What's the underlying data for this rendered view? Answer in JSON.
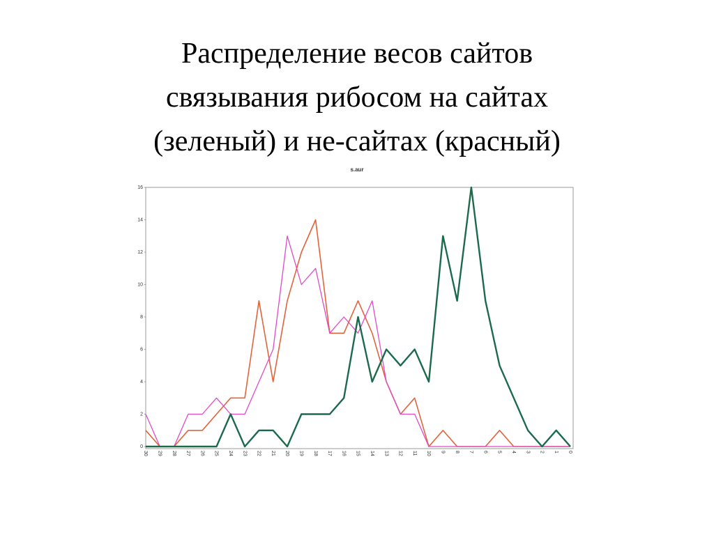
{
  "chart_data": {
    "type": "line",
    "title": [
      "Распределение весов сайтов",
      "связывания рибосом на сайтах",
      "(зеленый) и не-сайтах (красный)"
    ],
    "subtitle": "s.aur",
    "categories": [
      "30",
      "29",
      "28",
      "27",
      "26",
      "25",
      "24",
      "23",
      "22",
      "21",
      "20",
      "19",
      "18",
      "17",
      "16",
      "15",
      "14",
      "13",
      "12",
      "11",
      "10",
      "9",
      "8",
      "7",
      "6",
      "5",
      "4",
      "3",
      "2",
      "1",
      "0"
    ],
    "series": [
      {
        "color": "#e0643c",
        "width": 1.6,
        "values": [
          1,
          0,
          0,
          1,
          1,
          2,
          3,
          3,
          9,
          4,
          9,
          12,
          14,
          7,
          7,
          9,
          7,
          4,
          2,
          3,
          0,
          1,
          0,
          0,
          0,
          1,
          0,
          0,
          0,
          0,
          0
        ]
      },
      {
        "color": "#e04ac8",
        "width": 1.3,
        "values": [
          2,
          0,
          0,
          2,
          2,
          3,
          2,
          2,
          4,
          6,
          13,
          10,
          11,
          7,
          8,
          7,
          9,
          4,
          2,
          2,
          0,
          0,
          0,
          0,
          0,
          0,
          0,
          0,
          0,
          0,
          0
        ]
      },
      {
        "color": "#1b6a4c",
        "width": 2.4,
        "values": [
          0,
          0,
          0,
          0,
          0,
          0,
          2,
          0,
          1,
          1,
          0,
          2,
          2,
          2,
          3,
          8,
          4,
          6,
          5,
          6,
          4,
          13,
          9,
          16,
          9,
          5,
          3,
          1,
          0,
          1,
          0
        ]
      }
    ],
    "ylim": [
      0,
      16
    ],
    "yticks": [
      0,
      2,
      4,
      6,
      8,
      10,
      12,
      14,
      16
    ]
  }
}
